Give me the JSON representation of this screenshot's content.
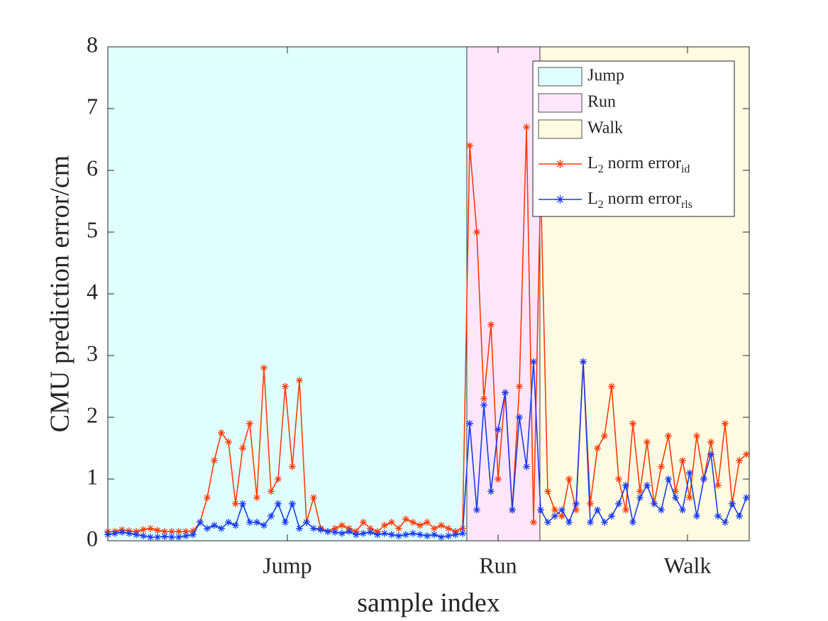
{
  "chart_data": {
    "type": "line",
    "xlabel": "sample index",
    "ylabel": "CMU prediction error/cm",
    "xlim": [
      0,
      904
    ],
    "ylim": [
      0,
      8
    ],
    "xticks": [
      {
        "value": 253,
        "label": "Jump"
      },
      {
        "value": 550,
        "label": "Run"
      },
      {
        "value": 817,
        "label": "Walk"
      }
    ],
    "yticks": [
      0,
      1,
      2,
      3,
      4,
      5,
      6,
      7,
      8
    ],
    "legend": "upper right",
    "regions": [
      {
        "name": "Jump",
        "color": "#e0ffff",
        "range": [
          0,
          506
        ]
      },
      {
        "name": "Run",
        "color": "#fde6fb",
        "range": [
          506,
          609
        ]
      },
      {
        "name": "Walk",
        "color": "#fffbe2",
        "range": [
          609,
          904
        ]
      }
    ],
    "x": [
      0,
      10,
      20,
      30,
      40,
      50,
      60,
      70,
      80,
      90,
      100,
      110,
      120,
      130,
      140,
      150,
      160,
      170,
      180,
      190,
      200,
      210,
      220,
      230,
      240,
      250,
      260,
      270,
      280,
      290,
      300,
      310,
      320,
      330,
      340,
      350,
      360,
      370,
      380,
      390,
      400,
      410,
      420,
      430,
      440,
      450,
      460,
      470,
      480,
      490,
      500,
      510,
      520,
      530,
      540,
      550,
      560,
      570,
      580,
      590,
      600,
      610,
      620,
      630,
      640,
      650,
      660,
      670,
      680,
      690,
      700,
      710,
      720,
      730,
      740,
      750,
      760,
      770,
      780,
      790,
      800,
      810,
      820,
      830,
      840,
      850,
      860,
      870,
      880,
      890,
      900
    ],
    "series": [
      {
        "name": [
          {
            "text": "L"
          },
          {
            "sub": "2"
          },
          {
            "text": " norm error"
          },
          {
            "sub": "id"
          }
        ],
        "color": "#ff3c0a",
        "values": [
          0.15,
          0.15,
          0.18,
          0.16,
          0.15,
          0.18,
          0.2,
          0.17,
          0.15,
          0.15,
          0.15,
          0.15,
          0.16,
          0.3,
          0.7,
          1.3,
          1.75,
          1.6,
          0.6,
          1.5,
          1.9,
          0.7,
          2.8,
          0.8,
          1.0,
          2.5,
          1.2,
          2.6,
          0.3,
          0.7,
          0.2,
          0.15,
          0.2,
          0.25,
          0.2,
          0.15,
          0.3,
          0.2,
          0.15,
          0.25,
          0.3,
          0.2,
          0.35,
          0.3,
          0.25,
          0.3,
          0.2,
          0.25,
          0.2,
          0.15,
          0.2,
          6.4,
          5.0,
          2.3,
          3.5,
          1.0,
          2.4,
          0.5,
          2.5,
          6.7,
          0.3,
          5.8,
          0.8,
          0.5,
          0.4,
          1.0,
          0.5,
          2.9,
          0.6,
          1.5,
          1.7,
          2.5,
          1.0,
          0.5,
          1.9,
          0.8,
          1.6,
          0.6,
          1.2,
          1.7,
          0.8,
          1.3,
          0.7,
          1.7,
          1.0,
          1.6,
          0.9,
          1.9,
          0.6,
          1.3,
          1.4
        ]
      },
      {
        "name": [
          {
            "text": "L"
          },
          {
            "sub": "2"
          },
          {
            "text": " norm error"
          },
          {
            "sub": "rls"
          }
        ],
        "color": "#1a3cf0",
        "values": [
          0.1,
          0.12,
          0.14,
          0.12,
          0.1,
          0.08,
          0.06,
          0.06,
          0.07,
          0.06,
          0.06,
          0.08,
          0.1,
          0.3,
          0.2,
          0.25,
          0.2,
          0.3,
          0.25,
          0.6,
          0.3,
          0.3,
          0.25,
          0.4,
          0.6,
          0.3,
          0.6,
          0.2,
          0.3,
          0.2,
          0.18,
          0.15,
          0.14,
          0.12,
          0.15,
          0.1,
          0.12,
          0.14,
          0.1,
          0.12,
          0.1,
          0.08,
          0.1,
          0.12,
          0.1,
          0.08,
          0.1,
          0.06,
          0.08,
          0.1,
          0.12,
          1.9,
          0.5,
          2.2,
          0.8,
          1.8,
          2.4,
          0.5,
          2.0,
          1.2,
          2.9,
          0.5,
          0.3,
          0.4,
          0.5,
          0.3,
          0.6,
          2.9,
          0.3,
          0.5,
          0.3,
          0.4,
          0.6,
          0.9,
          0.3,
          0.7,
          0.9,
          0.6,
          0.5,
          1.0,
          0.7,
          0.5,
          1.1,
          0.4,
          1.0,
          1.4,
          0.4,
          0.3,
          0.6,
          0.4,
          0.7
        ]
      }
    ]
  }
}
